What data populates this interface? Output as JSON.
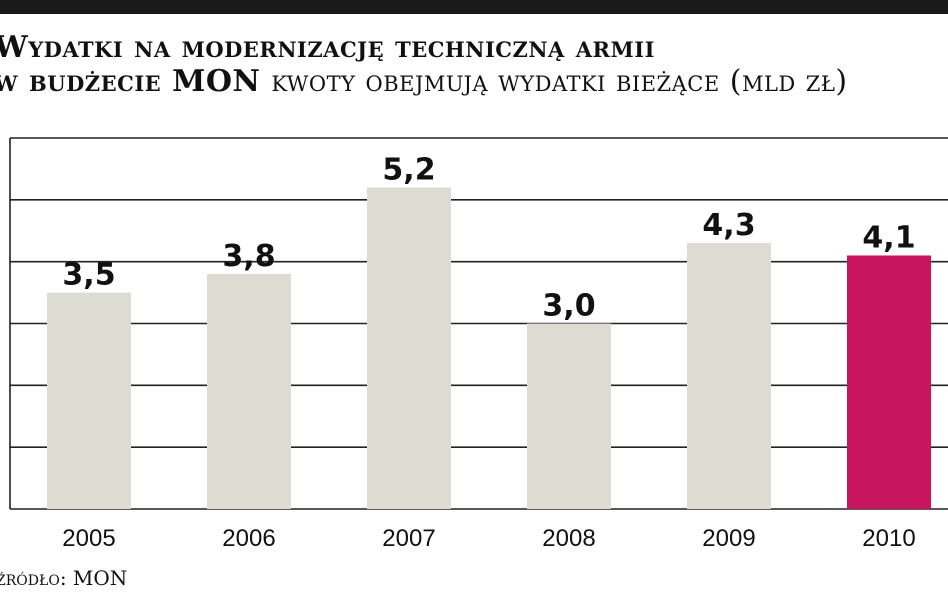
{
  "header": {
    "title_line1": "Wydatki na modernizację techniczną armii",
    "title_line2_bold": "w budżecie",
    "title_line2_big": "MON",
    "title_line2_rest": "kwoty obejmują wydatki bieżące (mld zł)"
  },
  "source": "źródło: MON",
  "colors": {
    "bar": "#dcdcd2",
    "highlight": "#c8165e",
    "grid": "#222222"
  },
  "chart_data": {
    "type": "bar",
    "categories": [
      "2005",
      "2006",
      "2007",
      "2008",
      "2009",
      "2010"
    ],
    "values": [
      3.5,
      3.8,
      5.2,
      3.0,
      4.3,
      4.1
    ],
    "value_labels": [
      "3,5",
      "3,8",
      "5,2",
      "3,0",
      "4,3",
      "4,1"
    ],
    "highlight_category": "2010",
    "ylim": [
      0,
      6
    ],
    "grid": true,
    "title": "Wydatki na modernizację techniczną armii",
    "xlabel": "",
    "ylabel": ""
  }
}
